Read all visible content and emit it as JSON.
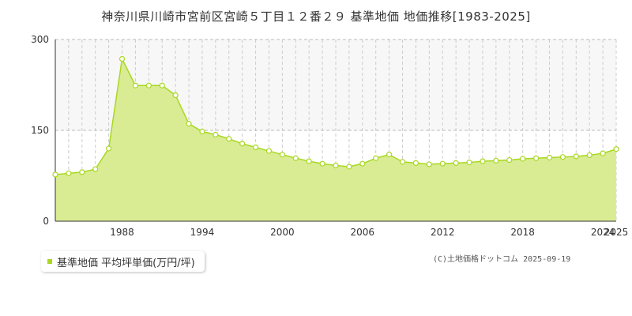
{
  "chart_data": {
    "type": "area",
    "title": "神奈川県川崎市宮前区宮崎５丁目１２番２９ 基準地価 地価推移[1983-2025]",
    "xlabel": "",
    "ylabel": "",
    "xlim": [
      1983,
      2025
    ],
    "ylim": [
      0,
      300
    ],
    "yticks": [
      0,
      150,
      300
    ],
    "xticks": [
      1988,
      1994,
      2000,
      2006,
      2012,
      2018,
      2024,
      2025
    ],
    "grid": true,
    "legend_position": "bottom-left",
    "series": [
      {
        "name": "基準地価 平均坪単価(万円/坪)",
        "color": "#a8d820",
        "fill": "#d9ec94",
        "x": [
          1983,
          1984,
          1985,
          1986,
          1987,
          1988,
          1989,
          1990,
          1991,
          1992,
          1993,
          1994,
          1995,
          1996,
          1997,
          1998,
          1999,
          2000,
          2001,
          2002,
          2003,
          2004,
          2005,
          2006,
          2007,
          2008,
          2009,
          2010,
          2011,
          2012,
          2013,
          2014,
          2015,
          2016,
          2017,
          2018,
          2019,
          2020,
          2021,
          2022,
          2023,
          2024,
          2025
        ],
        "values": [
          77,
          79,
          81,
          86,
          120,
          268,
          224,
          224,
          224,
          208,
          161,
          148,
          143,
          136,
          128,
          122,
          116,
          110,
          104,
          99,
          95,
          92,
          90,
          95,
          104,
          110,
          98,
          96,
          94,
          95,
          96,
          97,
          99,
          100,
          101,
          103,
          104,
          105,
          106,
          107,
          109,
          112,
          119
        ]
      }
    ]
  },
  "legend": {
    "label": "基準地価 平均坪単価(万円/坪)",
    "swatch_color": "#a8d820"
  },
  "copyright": "(C)土地価格ドットコム 2025-09-19"
}
